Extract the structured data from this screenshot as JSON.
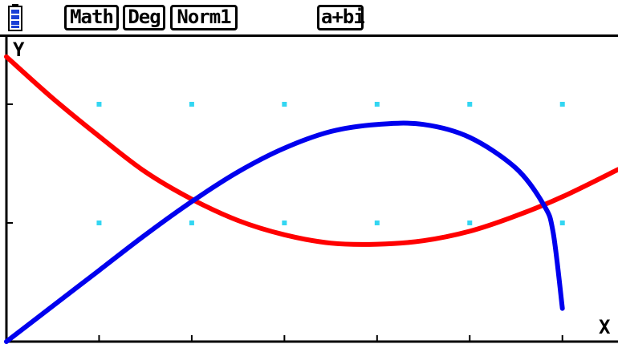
{
  "status_bar": {
    "battery_icon": "battery-icon",
    "modes": {
      "input": "Math",
      "angle": "Deg",
      "display": "Norm1",
      "complex": "a+bi"
    }
  },
  "chart_data": {
    "type": "line",
    "xlabel": "X",
    "ylabel": "Y",
    "xlim": [
      0,
      6.6
    ],
    "ylim": [
      0,
      2.5
    ],
    "x_ticks": [
      1,
      2,
      3,
      4,
      5,
      6
    ],
    "y_ticks": [
      1,
      2
    ],
    "grid": "dots",
    "series": [
      {
        "color": "#ff0000",
        "x": [
          0,
          0.5,
          1,
          1.5,
          2,
          2.5,
          3,
          3.5,
          4,
          4.5,
          5,
          5.5,
          6,
          6.6
        ],
        "values": [
          2.4,
          2.05,
          1.73,
          1.43,
          1.2,
          1.02,
          0.9,
          0.83,
          0.82,
          0.85,
          0.93,
          1.06,
          1.22,
          1.45
        ]
      },
      {
        "color": "#0000ee",
        "x": [
          0,
          0.5,
          1,
          1.5,
          2,
          2.5,
          3,
          3.5,
          4,
          4.5,
          5,
          5.5,
          5.8,
          5.9,
          6.0
        ],
        "values": [
          0.0,
          0.3,
          0.6,
          0.9,
          1.18,
          1.43,
          1.63,
          1.77,
          1.83,
          1.83,
          1.72,
          1.46,
          1.15,
          0.92,
          0.28
        ]
      }
    ]
  }
}
